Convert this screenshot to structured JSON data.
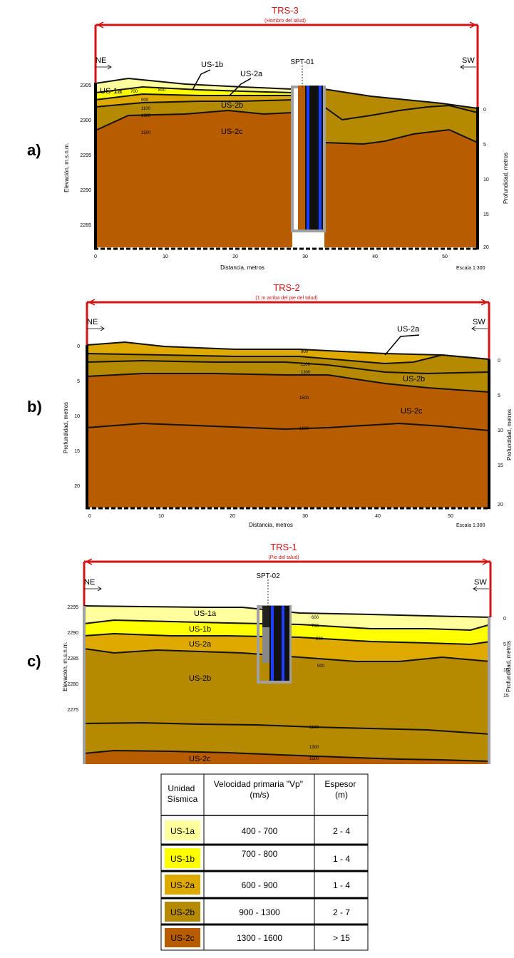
{
  "colors": {
    "red": "#d21414",
    "us1a": "#ffff9e",
    "us1b": "#ffff00",
    "us2a": "#deaa00",
    "us2b": "#b58a00",
    "us2c": "#b85c00",
    "probe_blue": "#1f3fff",
    "probe_dark": "#111111",
    "probe_gray": "#a0a0a0"
  },
  "panel_a": {
    "letter": "a)",
    "title": "TRS-3",
    "subtitle": "(Hombro del talud)",
    "ne": "NE",
    "sw": "SW",
    "spt": "SPT-01",
    "left_axis_label": "Elevación, m.s.n.m.",
    "right_axis_label": "Profundidad, metros",
    "x_axis_label": "Distancia, metros",
    "scale": "Escala 1:300",
    "left_ticks": [
      "2305",
      "2300",
      "2295",
      "2290",
      "2285"
    ],
    "right_ticks": [
      "0",
      "5",
      "10",
      "15",
      "20"
    ],
    "x_ticks": [
      "0",
      "10",
      "20",
      "30",
      "40",
      "50"
    ],
    "unit_labels": [
      "US-1a",
      "US-1b",
      "US-2a",
      "US-2b",
      "US-2c"
    ],
    "velocity_labels": [
      "700",
      "900",
      "1100",
      "1300",
      "1500",
      "800"
    ]
  },
  "panel_b": {
    "letter": "b)",
    "title": "TRS-2",
    "subtitle": "(1 m arriba del pie del talud)",
    "ne": "NE",
    "sw": "SW",
    "left_axis_label": "Profundidad, metros",
    "right_axis_label": "Profundidad, metros",
    "x_axis_label": "Distancia, metros",
    "scale": "Escala 1:300",
    "left_ticks": [
      "0",
      "5",
      "10",
      "15",
      "20"
    ],
    "right_ticks": [
      "0",
      "5",
      "10",
      "15",
      "20"
    ],
    "x_ticks": [
      "0",
      "10",
      "20",
      "30",
      "40",
      "50"
    ],
    "unit_labels": [
      "US-2a",
      "US-2b",
      "US-2c"
    ],
    "velocity_labels": [
      "900",
      "1100",
      "1300",
      "1500",
      "1600"
    ]
  },
  "panel_c": {
    "letter": "c)",
    "title": "TRS-1",
    "subtitle": "(Pie del talud)",
    "ne": "NE",
    "sw": "SW",
    "spt": "SPT-02",
    "left_axis_label": "Elevación, m.s.n.m.",
    "right_axis_label": "Profundidad, metros",
    "left_ticks": [
      "2295",
      "2290",
      "2285",
      "2280",
      "2275"
    ],
    "right_ticks": [
      "0",
      "5",
      "10",
      "15"
    ],
    "unit_labels": [
      "US-1a",
      "US-1b",
      "US-2a",
      "US-2b",
      "US-2c"
    ],
    "velocity_labels": [
      "600",
      "700",
      "800",
      "900",
      "1100",
      "1300",
      "1500"
    ]
  },
  "legend": {
    "headers": [
      "Unidad Sísmica",
      "Velocidad primaria \"Vp\" (m/s)",
      "Espesor (m)"
    ],
    "rows": [
      {
        "unit": "US-1a",
        "vp": "400 - 700",
        "thickness": "2 - 4"
      },
      {
        "unit": "US-1b",
        "vp": "700 - 800",
        "thickness": "1 - 4"
      },
      {
        "unit": "US-2a",
        "vp": "600 - 900",
        "thickness": "1 - 4"
      },
      {
        "unit": "US-2b",
        "vp": "900 - 1300",
        "thickness": "2 - 7"
      },
      {
        "unit": "US-2c",
        "vp": "1300 - 1600",
        "thickness": "> 15"
      }
    ]
  }
}
